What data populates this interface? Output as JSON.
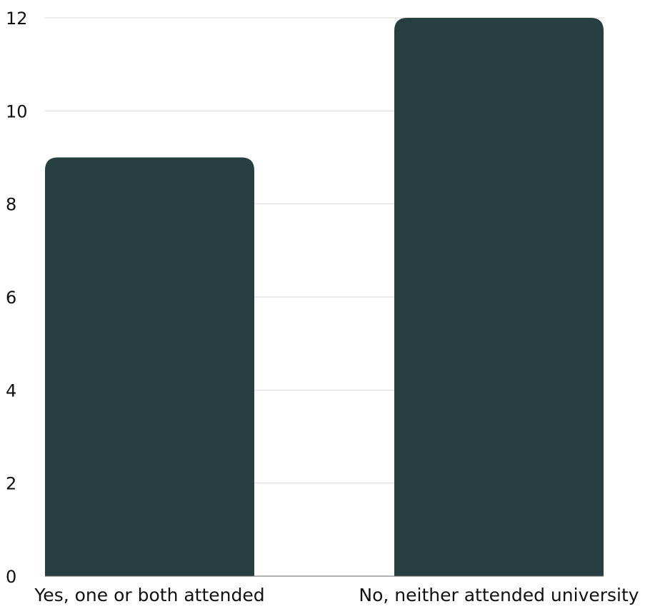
{
  "chart_data": {
    "type": "bar",
    "categories": [
      "Yes, one or both attended",
      "No, neither attended university"
    ],
    "values": [
      9,
      12
    ],
    "title": "",
    "xlabel": "",
    "ylabel": "",
    "ylim": [
      0,
      12
    ],
    "yticks": [
      0,
      2,
      4,
      6,
      8,
      10,
      12
    ],
    "grid": true,
    "legend": "none",
    "colors": {
      "bar": "#283f42",
      "grid": "#d9d9d9",
      "baseline": "#666666",
      "text": "#111111"
    }
  }
}
